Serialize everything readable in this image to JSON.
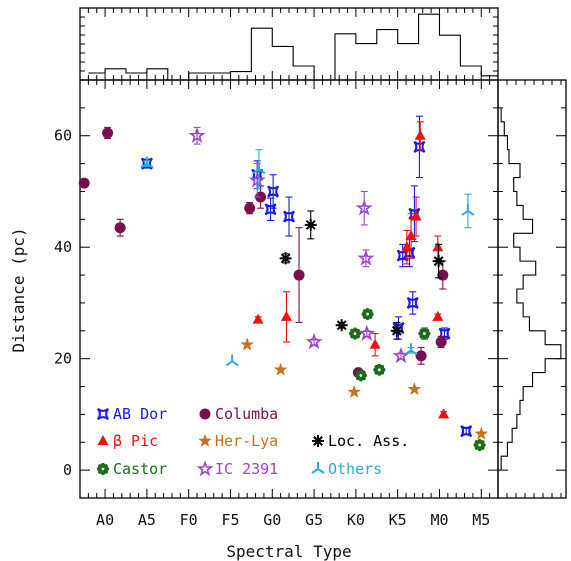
{
  "chart_data": {
    "type": "scatter",
    "xlabel": "Spectral Type",
    "ylabel": "Distance (pc)",
    "x_ticks": [
      {
        "label": "A0",
        "v": 0
      },
      {
        "label": "A5",
        "v": 5
      },
      {
        "label": "F0",
        "v": 10
      },
      {
        "label": "F5",
        "v": 15
      },
      {
        "label": "G0",
        "v": 20
      },
      {
        "label": "G5",
        "v": 25
      },
      {
        "label": "K0",
        "v": 30
      },
      {
        "label": "K5",
        "v": 35
      },
      {
        "label": "M0",
        "v": 40
      },
      {
        "label": "M5",
        "v": 45
      }
    ],
    "xlim": [
      -3,
      47
    ],
    "ylim": [
      -5,
      70
    ],
    "y_ticks": [
      0,
      20,
      40,
      60
    ],
    "series": [
      {
        "name": "AB Dor",
        "color": "#1a1ae6",
        "marker": "boxstar",
        "points": [
          {
            "x": 5,
            "y": 55,
            "e": 0.8
          },
          {
            "x": 18.2,
            "y": 53,
            "e": 2.5
          },
          {
            "x": 19.8,
            "y": 46.8,
            "e": 2
          },
          {
            "x": 20.1,
            "y": 50,
            "e": 3
          },
          {
            "x": 22,
            "y": 45.5,
            "e": 3.5
          },
          {
            "x": 35.1,
            "y": 25.5,
            "e": 2
          },
          {
            "x": 35.6,
            "y": 38.5,
            "e": 2
          },
          {
            "x": 36.4,
            "y": 39,
            "e": 2.5
          },
          {
            "x": 36.8,
            "y": 30,
            "e": 2
          },
          {
            "x": 37,
            "y": 46,
            "e": 5
          },
          {
            "x": 37.6,
            "y": 58,
            "e": 5.5
          },
          {
            "x": 40.6,
            "y": 24.5,
            "e": 1
          },
          {
            "x": 43.2,
            "y": 7,
            "e": 0.5
          }
        ]
      },
      {
        "name": "Columba",
        "color": "#7a0f4f",
        "marker": "circle",
        "points": [
          {
            "x": -2.5,
            "y": 51.5,
            "e": 0
          },
          {
            "x": 0.3,
            "y": 60.5,
            "e": 1
          },
          {
            "x": 1.8,
            "y": 43.5,
            "e": 1.5
          },
          {
            "x": 17.3,
            "y": 47,
            "e": 1
          },
          {
            "x": 18.6,
            "y": 49,
            "e": 2
          },
          {
            "x": 23.2,
            "y": 35,
            "e": 8.5
          },
          {
            "x": 30.3,
            "y": 17.5,
            "e": 0
          },
          {
            "x": 37.8,
            "y": 20.5,
            "e": 1.5
          },
          {
            "x": 40.2,
            "y": 23,
            "e": 1
          },
          {
            "x": 40.4,
            "y": 35,
            "e": 2.5
          }
        ]
      },
      {
        "name": "β Pic",
        "color": "#ee1111",
        "marker": "triangle",
        "points": [
          {
            "x": 18.3,
            "y": 27,
            "e": 0.5
          },
          {
            "x": 21.7,
            "y": 27.5,
            "e": 4.5
          },
          {
            "x": 32.3,
            "y": 22.5,
            "e": 2
          },
          {
            "x": 36.1,
            "y": 40,
            "e": 3
          },
          {
            "x": 36.6,
            "y": 42,
            "e": 4
          },
          {
            "x": 37.2,
            "y": 45.5,
            "e": 3.5
          },
          {
            "x": 37.7,
            "y": 60,
            "e": 2.5
          },
          {
            "x": 39.8,
            "y": 40,
            "e": 2
          },
          {
            "x": 39.8,
            "y": 27.5,
            "e": 0.5
          },
          {
            "x": 40.5,
            "y": 10,
            "e": 0.5
          }
        ]
      },
      {
        "name": "Her-Lya",
        "color": "#cc6f1a",
        "marker": "star",
        "points": [
          {
            "x": 17,
            "y": 22.5,
            "e": 0
          },
          {
            "x": 21,
            "y": 18,
            "e": 0
          },
          {
            "x": 29.8,
            "y": 14,
            "e": 0
          },
          {
            "x": 37,
            "y": 14.5,
            "e": 0
          },
          {
            "x": 45,
            "y": 6.5,
            "e": 0
          }
        ]
      },
      {
        "name": "Loc. Ass.",
        "color": "#000000",
        "marker": "asterisk",
        "points": [
          {
            "x": 21.6,
            "y": 38,
            "e": 0.8
          },
          {
            "x": 24.6,
            "y": 44,
            "e": 2.5
          },
          {
            "x": 28.3,
            "y": 26,
            "e": 0.5
          },
          {
            "x": 34.9,
            "y": 25,
            "e": 1.5
          },
          {
            "x": 39.9,
            "y": 37.5,
            "e": 3
          }
        ]
      },
      {
        "name": "Castor",
        "color": "#1a6b1a",
        "marker": "gear",
        "points": [
          {
            "x": 29.9,
            "y": 24.5,
            "e": 0.5
          },
          {
            "x": 30.6,
            "y": 17,
            "e": 0
          },
          {
            "x": 31.4,
            "y": 28,
            "e": 0
          },
          {
            "x": 32.8,
            "y": 18,
            "e": 0
          },
          {
            "x": 38.2,
            "y": 24.5,
            "e": 1
          },
          {
            "x": 44.8,
            "y": 4.5,
            "e": 0
          }
        ]
      },
      {
        "name": "IC 2391",
        "color": "#9a45cc",
        "marker": "openstar",
        "points": [
          {
            "x": 11,
            "y": 60,
            "e": 1.5
          },
          {
            "x": 18.2,
            "y": 52,
            "e": 3
          },
          {
            "x": 25,
            "y": 23,
            "e": 0.5
          },
          {
            "x": 31,
            "y": 47,
            "e": 3
          },
          {
            "x": 31.2,
            "y": 38,
            "e": 1.5
          },
          {
            "x": 31.3,
            "y": 24.5,
            "e": 0.5
          },
          {
            "x": 35.4,
            "y": 20.5,
            "e": 0.5
          }
        ]
      },
      {
        "name": "Others",
        "color": "#2aaad8",
        "marker": "tri3",
        "points": [
          {
            "x": 5,
            "y": 55,
            "e": 0.5
          },
          {
            "x": 15.2,
            "y": 19.5,
            "e": 0
          },
          {
            "x": 18.4,
            "y": 54,
            "e": 3.5
          },
          {
            "x": 36.6,
            "y": 21.5,
            "e": 0.5
          },
          {
            "x": 43.4,
            "y": 46.5,
            "e": 3
          }
        ]
      }
    ],
    "legend_placement": "bottom-left",
    "top_histogram": {
      "note": "frequency steps along x (spectral type)",
      "edges": [
        -2,
        0,
        2.5,
        5,
        7.5,
        10,
        12.5,
        15,
        17.5,
        20,
        22.5,
        25,
        27.5,
        30,
        32.5,
        35,
        37.5,
        40,
        42.5,
        45,
        47
      ],
      "counts": [
        0.5,
        0.8,
        0.5,
        0.8,
        0,
        0.5,
        0.5,
        0.6,
        3.7,
        2.4,
        1,
        0,
        3.3,
        2.6,
        3.6,
        2.6,
        4.7,
        3.2,
        1,
        0.3
      ]
    },
    "right_histogram": {
      "note": "frequency steps along y (distance)",
      "edges": [
        0,
        2.5,
        5,
        7.5,
        10,
        12.5,
        15,
        17.5,
        20,
        22.5,
        25,
        27.5,
        30,
        32.5,
        35,
        37.5,
        40,
        42.5,
        45,
        47.5,
        50,
        52.5,
        55,
        57.5,
        60,
        62.5,
        65
      ],
      "counts": [
        0.2,
        0.6,
        0.9,
        1.2,
        1.4,
        1.6,
        2.2,
        3.0,
        4.0,
        3.0,
        2.0,
        1.6,
        1.2,
        1.6,
        2.4,
        1.4,
        1.0,
        2.2,
        1.6,
        1.2,
        1.0,
        1.4,
        0.7,
        0.6,
        0.4,
        0.2
      ],
      "max": 4.2
    }
  }
}
